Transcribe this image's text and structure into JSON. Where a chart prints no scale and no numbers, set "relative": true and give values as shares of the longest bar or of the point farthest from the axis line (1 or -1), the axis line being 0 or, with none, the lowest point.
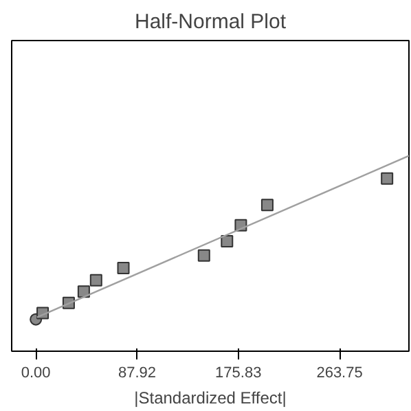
{
  "chart_data": {
    "type": "scatter",
    "title": "Half-Normal Plot",
    "xlabel": "|Standardized Effect|",
    "relative": true,
    "tick_labels": "x",
    "grid": false,
    "xlim": [
      -21,
      324
    ],
    "xticks": [
      {
        "value": 0,
        "label": "0.00"
      },
      87.92,
      175.83,
      263.75
    ],
    "series": [
      {
        "color": "#888888",
        "marker": "circle",
        "x": [
          0
        ],
        "values": [
          0.163
        ]
      },
      {
        "color": "#888888",
        "marker": "square",
        "x": [
          5.9,
          28.5,
          41.6,
          52.3,
          76,
          146,
          166,
          178,
          201,
          305
        ],
        "values": [
          0.195,
          0.247,
          0.305,
          0.363,
          0.426,
          0.49,
          0.563,
          0.645,
          0.748,
          0.884
        ]
      },
      {
        "type": "line",
        "color": "#a0a0a0",
        "x": [
          1,
          324
        ],
        "values": [
          0.174,
          1.0
        ]
      }
    ]
  }
}
